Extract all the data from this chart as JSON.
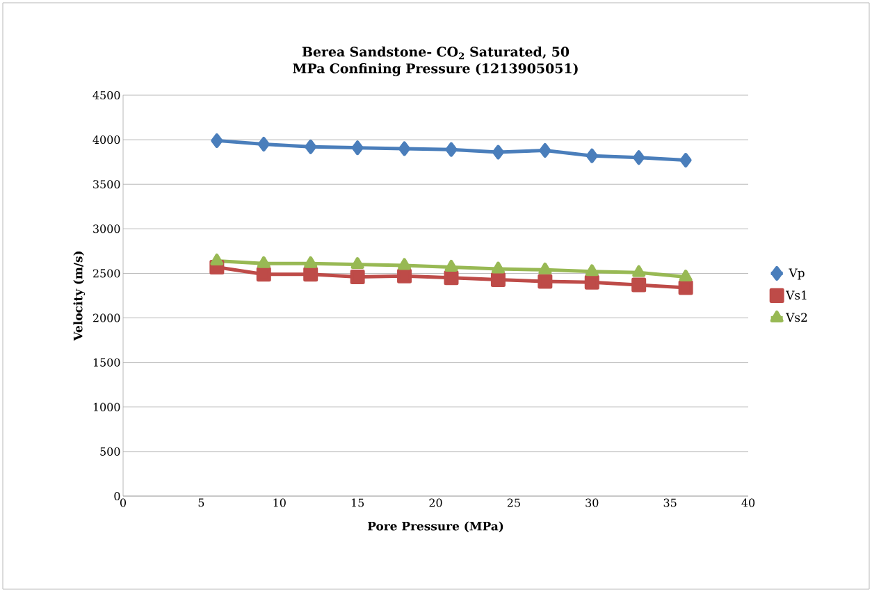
{
  "chart_data": {
    "type": "line",
    "title": "Berea Sandstone- CO$_{2}$ Saturated, 50 MPa Confining Pressure (1213905051)",
    "xlabel": "Pore Pressure (MPa)",
    "ylabel": "Velocity (m/s)",
    "x": [
      6,
      9,
      12,
      15,
      18,
      21,
      24,
      27,
      30,
      33,
      36
    ],
    "series": [
      {
        "name": "Vp",
        "color": "#4a7ebb",
        "marker": "diamond",
        "values": [
          3990,
          3950,
          3920,
          3910,
          3900,
          3890,
          3860,
          3880,
          3820,
          3800,
          3770
        ]
      },
      {
        "name": "Vs1",
        "color": "#be4b48",
        "marker": "square",
        "values": [
          2570,
          2490,
          2490,
          2460,
          2470,
          2450,
          2430,
          2410,
          2400,
          2370,
          2340
        ]
      },
      {
        "name": "Vs2",
        "color": "#98b954",
        "marker": "triangle",
        "values": [
          2640,
          2610,
          2610,
          2600,
          2590,
          2570,
          2550,
          2540,
          2520,
          2510,
          2460
        ]
      }
    ],
    "xlim": [
      0,
      40
    ],
    "xticks": [
      0,
      5,
      10,
      15,
      20,
      25,
      30,
      35,
      40
    ],
    "ylim": [
      0,
      4500
    ],
    "yticks": [
      0,
      500,
      1000,
      1500,
      2000,
      2500,
      3000,
      3500,
      4000,
      4500
    ],
    "grid": "y",
    "legend": "right",
    "line_style": "solid"
  }
}
